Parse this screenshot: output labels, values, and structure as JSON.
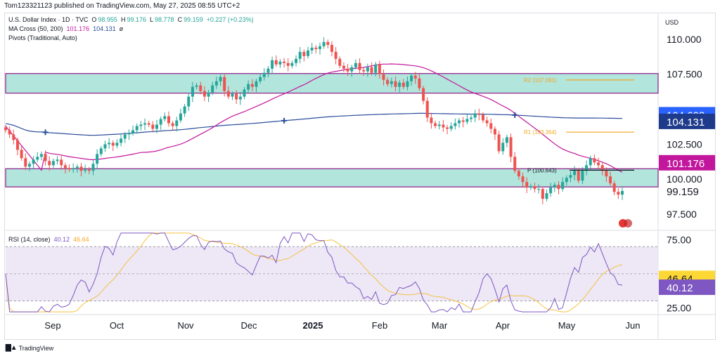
{
  "header": {
    "published": "Tom123321123 published on TradingView.com, May 27, 2025 08:55 UTC+2"
  },
  "legend": {
    "symbol": "U.S. Dollar Index · 1D · TVC",
    "o_label": "O",
    "o_value": "98.955",
    "h_label": "H",
    "h_value": "99.176",
    "l_label": "L",
    "l_value": "98.778",
    "c_label": "C",
    "c_value": "99.159",
    "change": "+0.227 (+0.23%)",
    "ma_label": "MA Cross (50, 200)",
    "ma50_value": "101.176",
    "ma200_value": "104.131",
    "ma_extra": "ø",
    "pivots_label": "Pivots (Traditional, Auto)",
    "rsi_label": "RSI (14, close)",
    "rsi_value": "40.12",
    "rsi_ma_value": "46.64"
  },
  "footer": {
    "brand": "TradingView"
  },
  "colors": {
    "up": "#26a69a",
    "down": "#ef5350",
    "ma50": "#c2179d",
    "ma200": "#2a4d9b",
    "zone": "#b2e5dc",
    "zoneBorder": "#8e1b86",
    "pivotLine": "#f5a623",
    "rsi": "#7e57c2",
    "rsiMa": "#f5c242",
    "rsiBand": "#ede7f6"
  },
  "chart_data": [
    {
      "type": "candlestick",
      "currency": "USD",
      "x_months": [
        "Sep",
        "Oct",
        "Nov",
        "Dec",
        "2025",
        "Feb",
        "Mar",
        "Apr",
        "May",
        "Jun"
      ],
      "y_ticks": [
        "110.000",
        "107.500",
        "102.500",
        "100.000",
        "97.500"
      ],
      "ylim": [
        96.5,
        111.8
      ],
      "price_labels": {
        "ma200": "104.608",
        "ma200_current": "104.131",
        "ma50_current": "101.176",
        "last": "99.159"
      },
      "zones": [
        {
          "low": 106.15,
          "high": 107.55
        },
        {
          "low": 99.45,
          "high": 100.75
        }
      ],
      "pivots": [
        {
          "label": "R2 (107.091)",
          "value": 107.091
        },
        {
          "label": "R1 (103.364)",
          "value": 103.364
        },
        {
          "label": "P (100.643)",
          "value": 100.643
        }
      ],
      "closes": [
        103.5,
        103.2,
        102.8,
        102.1,
        101.5,
        100.9,
        101.1,
        101.4,
        101.6,
        101.8,
        101.3,
        101.0,
        101.3,
        101.4,
        101.0,
        100.8,
        100.7,
        100.8,
        100.9,
        100.6,
        100.7,
        100.6,
        101.1,
        101.8,
        102.2,
        102.5,
        102.6,
        102.4,
        102.6,
        102.9,
        103.2,
        103.3,
        103.5,
        103.8,
        103.9,
        104.0,
        103.9,
        103.6,
        103.9,
        104.3,
        104.5,
        104.0,
        103.8,
        104.2,
        104.7,
        105.2,
        105.9,
        106.6,
        106.7,
        106.3,
        105.9,
        106.2,
        106.7,
        107.0,
        107.3,
        106.3,
        105.9,
        106.1,
        105.7,
        105.9,
        106.4,
        106.8,
        106.6,
        107.0,
        107.3,
        107.6,
        107.9,
        108.5,
        108.2,
        108.4,
        108.3,
        108.1,
        108.3,
        108.6,
        109.1,
        108.8,
        109.2,
        109.4,
        109.3,
        109.5,
        109.8,
        109.6,
        109.1,
        108.6,
        108.1,
        107.9,
        107.7,
        108.0,
        108.3,
        107.8,
        107.7,
        108.0,
        107.6,
        108.2,
        107.5,
        107.1,
        106.8,
        107.0,
        106.6,
        106.9,
        106.6,
        107.0,
        107.4,
        107.2,
        106.5,
        105.6,
        104.4,
        104.0,
        103.8,
        103.9,
        103.7,
        103.6,
        103.8,
        104.0,
        104.2,
        104.1,
        104.3,
        104.4,
        104.7,
        104.6,
        104.2,
        104.0,
        103.6,
        103.2,
        102.0,
        102.6,
        103.0,
        101.6,
        100.6,
        100.2,
        99.8,
        99.4,
        99.5,
        99.3,
        99.3,
        98.6,
        99.0,
        99.4,
        99.6,
        99.3,
        99.8,
        100.1,
        100.3,
        100.6,
        99.9,
        100.6,
        101.0,
        101.5,
        101.2,
        101.0,
        100.6,
        100.2,
        99.7,
        99.1,
        98.9,
        99.159
      ]
    },
    {
      "type": "line",
      "title": "RSI (14, close)",
      "y_ticks": [
        "75.00",
        "25.00"
      ],
      "ylim": [
        20,
        82
      ],
      "bands": [
        70,
        30
      ],
      "price_labels": {
        "ma": "46.64",
        "rsi": "40.12"
      }
    }
  ]
}
